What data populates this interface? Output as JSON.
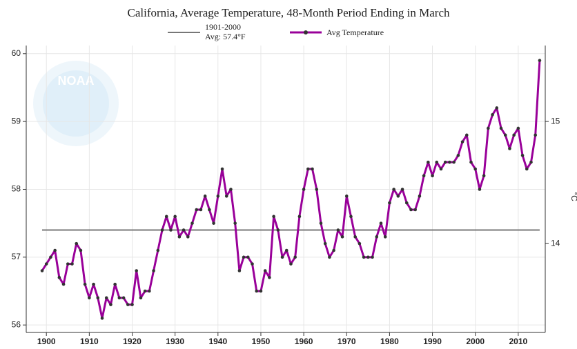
{
  "chart_data": {
    "type": "line",
    "title": "California, Average Temperature, 48-Month Period Ending in March",
    "watermark": "NOAA",
    "x": [
      1899,
      1900,
      1901,
      1902,
      1903,
      1904,
      1905,
      1906,
      1907,
      1908,
      1909,
      1910,
      1911,
      1912,
      1913,
      1914,
      1915,
      1916,
      1917,
      1918,
      1919,
      1920,
      1921,
      1922,
      1923,
      1924,
      1925,
      1926,
      1927,
      1928,
      1929,
      1930,
      1931,
      1932,
      1933,
      1934,
      1935,
      1936,
      1937,
      1938,
      1939,
      1940,
      1941,
      1942,
      1943,
      1944,
      1945,
      1946,
      1947,
      1948,
      1949,
      1950,
      1951,
      1952,
      1953,
      1954,
      1955,
      1956,
      1957,
      1958,
      1959,
      1960,
      1961,
      1962,
      1963,
      1964,
      1965,
      1966,
      1967,
      1968,
      1969,
      1970,
      1971,
      1972,
      1973,
      1974,
      1975,
      1976,
      1977,
      1978,
      1979,
      1980,
      1981,
      1982,
      1983,
      1984,
      1985,
      1986,
      1987,
      1988,
      1989,
      1990,
      1991,
      1992,
      1993,
      1994,
      1995,
      1996,
      1997,
      1998,
      1999,
      2000,
      2001,
      2002,
      2003,
      2004,
      2005,
      2006,
      2007,
      2008,
      2009,
      2010,
      2011,
      2012,
      2013,
      2014,
      2015
    ],
    "series": [
      {
        "name": "Avg Temperature",
        "color": "#990099",
        "marker_color": "#333333",
        "values": [
          56.8,
          56.9,
          57.0,
          57.1,
          56.7,
          56.6,
          56.9,
          56.9,
          57.2,
          57.1,
          56.6,
          56.4,
          56.6,
          56.4,
          56.1,
          56.4,
          56.3,
          56.6,
          56.4,
          56.4,
          56.3,
          56.3,
          56.8,
          56.4,
          56.5,
          56.5,
          56.8,
          57.1,
          57.4,
          57.6,
          57.4,
          57.6,
          57.3,
          57.4,
          57.3,
          57.5,
          57.7,
          57.7,
          57.9,
          57.7,
          57.5,
          57.9,
          58.3,
          57.9,
          58.0,
          57.5,
          56.8,
          57.0,
          57.0,
          56.9,
          56.5,
          56.5,
          56.8,
          56.7,
          57.6,
          57.4,
          57.0,
          57.1,
          56.9,
          57.0,
          57.6,
          58.0,
          58.3,
          58.3,
          58.0,
          57.5,
          57.2,
          57.0,
          57.1,
          57.4,
          57.3,
          57.9,
          57.6,
          57.3,
          57.2,
          57.0,
          57.0,
          57.0,
          57.3,
          57.5,
          57.3,
          57.8,
          58.0,
          57.9,
          58.0,
          57.8,
          57.7,
          57.7,
          57.9,
          58.2,
          58.4,
          58.2,
          58.4,
          58.3,
          58.4,
          58.4,
          58.4,
          58.5,
          58.7,
          58.8,
          58.4,
          58.3,
          58.0,
          58.2,
          58.9,
          59.1,
          59.2,
          58.9,
          58.8,
          58.6,
          58.8,
          58.9,
          58.5,
          58.3,
          58.4,
          58.8,
          59.9
        ]
      }
    ],
    "reference_line": {
      "label_lines": [
        "1901-2000",
        "Avg: 57.4°F"
      ],
      "value": 57.4,
      "color": "#777777"
    },
    "xlim": [
      1895.3,
      2016.3
    ],
    "xticks": [
      1900,
      1910,
      1920,
      1930,
      1940,
      1950,
      1960,
      1970,
      1980,
      1990,
      2000,
      2010
    ],
    "ylim": [
      55.89,
      60.12
    ],
    "yticks": [
      56,
      57,
      58,
      59,
      60
    ],
    "y2lim": [
      13.272,
      15.622
    ],
    "y2ticks": [
      14,
      15
    ],
    "y2label": "°C",
    "grid": true
  }
}
